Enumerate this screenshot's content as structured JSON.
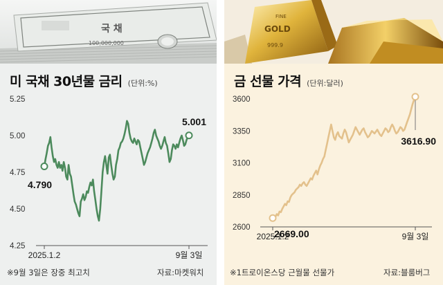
{
  "left_panel": {
    "title": "미 국채 30년물 금리",
    "unit": "(단위:%)",
    "footnote": "※9월 3일은 장중 최고치",
    "source": "자료:마켓워치",
    "bond_text": {
      "word": "국 채",
      "number": "100,000,000"
    }
  },
  "right_panel": {
    "title": "금 선물 가격",
    "unit": "(단위:달러)",
    "footnote": "※1트로이온스당 근월물 선물가",
    "source": "자료:블룸버그",
    "bar_text": {
      "line1": "FINE",
      "line2": "GOLD",
      "line3": "999.9"
    }
  },
  "chart_data": [
    {
      "type": "line",
      "title": "미 국채 30년물 금리",
      "ylabel": "(단위:%)",
      "ylim": [
        4.25,
        5.25
      ],
      "yticks": [
        "5.25",
        "5.00",
        "4.75",
        "4.50",
        "4.25"
      ],
      "xticks": [
        "2025.1.2",
        "9월 3일"
      ],
      "start_label": "4.790",
      "end_label": "5.001",
      "color": "#4c8a5c",
      "values": [
        4.79,
        4.84,
        4.88,
        4.93,
        4.95,
        4.99,
        4.92,
        4.86,
        4.82,
        4.84,
        4.8,
        4.78,
        4.82,
        4.78,
        4.8,
        4.76,
        4.82,
        4.78,
        4.72,
        4.7,
        4.8,
        4.74,
        4.72,
        4.66,
        4.6,
        4.55,
        4.53,
        4.5,
        4.47,
        4.45,
        4.55,
        4.57,
        4.6,
        4.56,
        4.58,
        4.62,
        4.61,
        4.65,
        4.68,
        4.66,
        4.7,
        4.62,
        4.56,
        4.5,
        4.45,
        4.42,
        4.5,
        4.62,
        4.75,
        4.82,
        4.86,
        4.8,
        4.74,
        4.85,
        4.87,
        4.8,
        4.74,
        4.7,
        4.72,
        4.8,
        4.84,
        4.9,
        4.92,
        4.95,
        4.96,
        4.98,
        5.01,
        5.05,
        5.1,
        5.08,
        5.02,
        4.98,
        4.96,
        4.95,
        4.98,
        4.96,
        4.94,
        4.97,
        4.96,
        4.92,
        4.88,
        4.84,
        4.8,
        4.82,
        4.85,
        4.88,
        4.9,
        4.92,
        4.95,
        4.98,
        5.02,
        5.04,
        5.0,
        4.98,
        4.96,
        4.93,
        4.91,
        4.93,
        4.96,
        4.99,
        4.95,
        4.93,
        4.88,
        4.82,
        4.84,
        4.9,
        4.94,
        4.93,
        4.91,
        4.94,
        4.92,
        4.95,
        4.98,
        5.0,
        4.97,
        4.93,
        4.94,
        4.97,
        4.99,
        5.001
      ]
    },
    {
      "type": "line",
      "title": "금 선물 가격",
      "ylabel": "(단위:달러)",
      "ylim": [
        2600,
        3600
      ],
      "yticks": [
        "3600",
        "3350",
        "3100",
        "2850",
        "2600"
      ],
      "xticks": [
        "2025.1.2",
        "9월 3일"
      ],
      "start_label": "2669.00",
      "end_label": "3616.90",
      "color": "#e3c18c",
      "values": [
        2669,
        2650,
        2680,
        2700,
        2690,
        2720,
        2715,
        2740,
        2760,
        2780,
        2770,
        2800,
        2795,
        2830,
        2850,
        2860,
        2870,
        2890,
        2900,
        2910,
        2930,
        2920,
        2940,
        2950,
        2930,
        2920,
        2940,
        2960,
        2980,
        2970,
        3000,
        3020,
        3040,
        3010,
        3050,
        3080,
        3100,
        3130,
        3150,
        3200,
        3250,
        3300,
        3350,
        3400,
        3350,
        3300,
        3280,
        3320,
        3340,
        3310,
        3300,
        3290,
        3330,
        3360,
        3340,
        3300,
        3260,
        3280,
        3300,
        3320,
        3350,
        3380,
        3360,
        3340,
        3320,
        3340,
        3360,
        3370,
        3340,
        3320,
        3300,
        3310,
        3330,
        3350,
        3340,
        3330,
        3345,
        3360,
        3340,
        3320,
        3310,
        3330,
        3350,
        3370,
        3360,
        3340,
        3350,
        3380,
        3400,
        3380,
        3350,
        3330,
        3340,
        3360,
        3380,
        3370,
        3350,
        3360,
        3390,
        3420,
        3450,
        3480,
        3520,
        3560,
        3590,
        3616.9
      ]
    }
  ]
}
